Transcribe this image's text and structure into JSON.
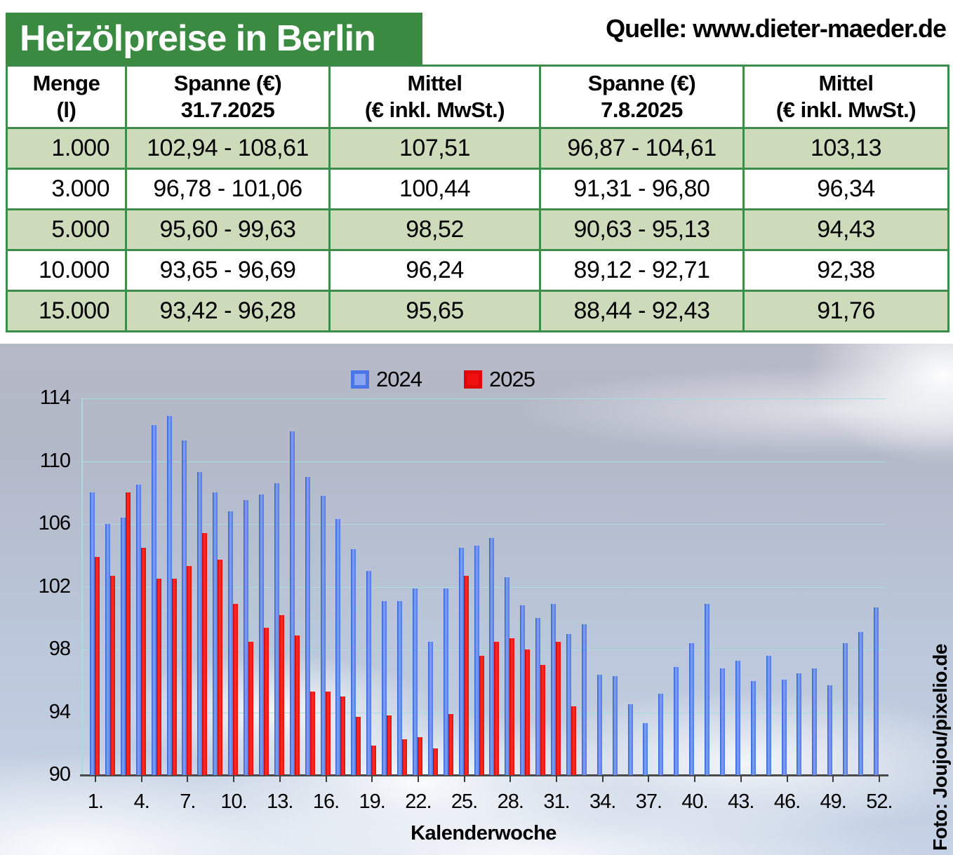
{
  "header": {
    "title": "Heizölpreise in Berlin",
    "source": "Quelle: www.dieter-maeder.de"
  },
  "table": {
    "columns": [
      {
        "line1": "Menge",
        "line2": "(l)"
      },
      {
        "line1": "Spanne (€)",
        "line2": "31.7.2025"
      },
      {
        "line1": "Mittel",
        "line2": "(€ inkl. MwSt.)"
      },
      {
        "line1": "Spanne (€)",
        "line2": "7.8.2025"
      },
      {
        "line1": "Mittel",
        "line2": "(€ inkl. MwSt.)"
      }
    ],
    "rows": [
      [
        "1.000",
        "102,94 - 108,61",
        "107,51",
        "96,87 - 104,61",
        "103,13"
      ],
      [
        "3.000",
        "96,78 - 101,06",
        "100,44",
        "91,31 - 96,80",
        "96,34"
      ],
      [
        "5.000",
        "95,60 - 99,63",
        "98,52",
        "90,63 - 95,13",
        "94,43"
      ],
      [
        "10.000",
        "93,65 - 96,69",
        "96,24",
        "89,12 - 92,71",
        "92,38"
      ],
      [
        "15.000",
        "93,42 - 96,28",
        "95,65",
        "88,44 - 92,43",
        "91,76"
      ]
    ]
  },
  "chart_data": {
    "type": "bar",
    "title": "",
    "xlabel": "Kalenderwoche",
    "ylabel": "",
    "ylim": [
      90,
      114
    ],
    "yticks": [
      90,
      94,
      98,
      102,
      106,
      110,
      114
    ],
    "x_tick_labels": [
      "1.",
      "4.",
      "7.",
      "10.",
      "13.",
      "16.",
      "19.",
      "22.",
      "25.",
      "28.",
      "31.",
      "34.",
      "37.",
      "40.",
      "43.",
      "46.",
      "49.",
      "52."
    ],
    "x_tick_weeks": [
      1,
      4,
      7,
      10,
      13,
      16,
      19,
      22,
      25,
      28,
      31,
      34,
      37,
      40,
      43,
      46,
      49,
      52
    ],
    "n_weeks": 52,
    "grid": true,
    "legend_position": "top-center",
    "series": [
      {
        "name": "2024",
        "color": "#4a77e8",
        "values": [
          108.0,
          106.0,
          106.4,
          108.5,
          112.3,
          112.9,
          111.3,
          109.3,
          108.0,
          106.8,
          107.5,
          107.9,
          108.6,
          111.9,
          109.0,
          107.8,
          106.3,
          104.4,
          103.0,
          101.1,
          101.1,
          101.9,
          98.5,
          101.9,
          104.5,
          104.6,
          105.1,
          102.6,
          100.8,
          100.0,
          100.9,
          99.0,
          99.6,
          96.4,
          96.3,
          94.5,
          93.3,
          95.2,
          96.9,
          98.4,
          100.9,
          96.8,
          97.3,
          96.0,
          97.6,
          96.1,
          96.5,
          96.8,
          95.7,
          98.4,
          99.1,
          100.7
        ]
      },
      {
        "name": "2025",
        "color": "#e60d0d",
        "values": [
          103.9,
          102.7,
          108.0,
          104.5,
          102.5,
          102.5,
          103.3,
          105.4,
          103.7,
          100.9,
          98.5,
          99.4,
          100.2,
          98.9,
          95.3,
          95.3,
          95.0,
          93.7,
          91.9,
          93.8,
          92.3,
          92.4,
          91.7,
          93.9,
          102.7,
          97.6,
          98.5,
          98.7,
          98.0,
          97.0,
          98.5,
          94.4
        ]
      }
    ]
  },
  "credit": "Foto: Joujou/pixelio.de",
  "colors": {
    "brand_green": "#3a8a41",
    "table_border_green": "#3e8c49",
    "table_row_green": "#cedbba",
    "gridline_cyan": "#a9dcdf",
    "bar_blue": "#4a77e8",
    "bar_red": "#e60d0d"
  }
}
